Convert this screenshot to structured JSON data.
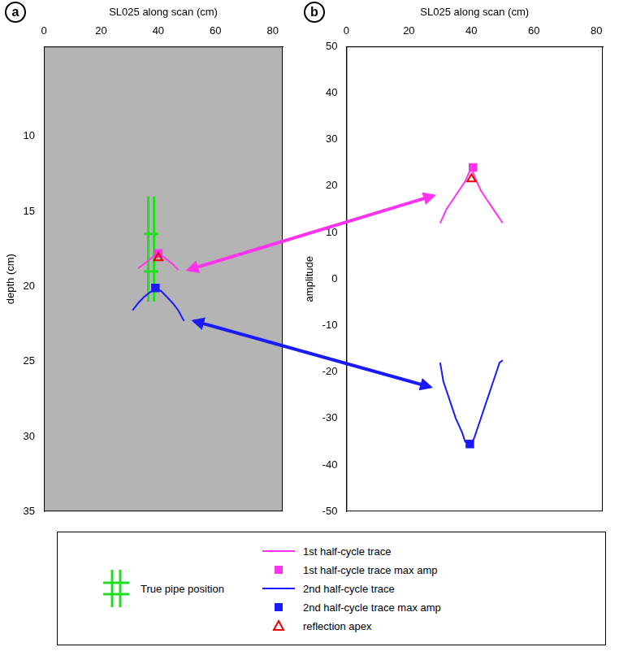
{
  "chart_data": [
    {
      "type": "line",
      "panel_label": "a",
      "x_label": "SL025 along scan (cm)",
      "y_label": "depth (cm)",
      "xlim": [
        0,
        83.5
      ],
      "xticks": [
        0,
        20,
        40,
        60,
        80
      ],
      "ylim": [
        35,
        4
      ],
      "yticks": [
        10,
        15,
        20,
        25,
        30,
        35
      ],
      "grid": false,
      "legend": "bottom",
      "series": [
        {
          "name": "True pipe position",
          "color": "#22dd22",
          "marker": "none",
          "line_style": "solid",
          "x": [
            36.5,
            36.5,
            null,
            38.5,
            38.5,
            null,
            35,
            40,
            null,
            35,
            40
          ],
          "values": [
            14,
            21,
            null,
            14,
            21,
            null,
            16.5,
            16.5,
            null,
            19,
            19
          ]
        },
        {
          "name": "1st half-cycle trace",
          "color": "#ff33ee",
          "marker": "none",
          "line_style": "solid",
          "x": [
            33,
            35,
            37,
            39,
            41,
            43,
            45,
            47
          ],
          "values": [
            18.8,
            18.5,
            18.2,
            17.9,
            17.9,
            18.2,
            18.5,
            18.9
          ]
        },
        {
          "name": "1st half-cycle trace max amp",
          "color": "#ff33ee",
          "marker": "square",
          "line_style": "none",
          "x": [
            40
          ],
          "values": [
            17.8
          ]
        },
        {
          "name": "2nd half-cycle trace",
          "color": "#1a1aff",
          "marker": "none",
          "line_style": "solid",
          "x": [
            31,
            33,
            35,
            37,
            39,
            41,
            43,
            45,
            47,
            49
          ],
          "values": [
            21.6,
            21.1,
            20.7,
            20.4,
            20.2,
            20.3,
            20.7,
            21.1,
            21.6,
            22.3
          ]
        },
        {
          "name": "2nd half-cycle trace max amp",
          "color": "#1a1aff",
          "marker": "square",
          "line_style": "none",
          "x": [
            39
          ],
          "values": [
            20.1
          ]
        },
        {
          "name": "reflection apex",
          "color": "#ee0000",
          "marker": "triangle",
          "line_style": "none",
          "x": [
            40
          ],
          "values": [
            18.1
          ]
        }
      ]
    },
    {
      "type": "line",
      "panel_label": "b",
      "x_label": "SL025 along scan (cm)",
      "y_label": "amplitude",
      "xlim": [
        0,
        82
      ],
      "xticks": [
        0,
        20,
        40,
        60,
        80
      ],
      "ylim": [
        -50,
        50
      ],
      "yticks": [
        -50,
        -40,
        -30,
        -20,
        -10,
        0,
        10,
        20,
        30,
        40,
        50
      ],
      "grid": false,
      "series": [
        {
          "name": "1st half-cycle trace",
          "color": "#ff33ee",
          "marker": "none",
          "line_style": "solid",
          "x": [
            30,
            32,
            34,
            36,
            38,
            39,
            40,
            41,
            43,
            45,
            47,
            50
          ],
          "values": [
            12,
            15,
            17,
            19,
            21,
            22.5,
            24,
            22,
            19,
            17,
            15,
            12
          ]
        },
        {
          "name": "1st half-cycle trace max amp",
          "color": "#ff33ee",
          "marker": "square",
          "line_style": "none",
          "x": [
            40.5
          ],
          "values": [
            24
          ]
        },
        {
          "name": "2nd half-cycle trace",
          "color": "#1a1aff",
          "marker": "none",
          "line_style": "solid",
          "x": [
            30,
            31,
            33,
            35,
            37,
            38,
            39,
            40,
            41,
            43,
            45,
            47,
            49,
            50
          ],
          "values": [
            -18,
            -22,
            -26,
            -30,
            -33,
            -35,
            -35.5,
            -35.5,
            -34,
            -30,
            -26,
            -22,
            -18,
            -17.5
          ]
        },
        {
          "name": "2nd half-cycle trace max amp",
          "color": "#1a1aff",
          "marker": "square",
          "line_style": "none",
          "x": [
            39.5
          ],
          "values": [
            -35.5
          ]
        },
        {
          "name": "reflection apex",
          "color": "#ee0000",
          "marker": "triangle",
          "line_style": "none",
          "x": [
            40
          ],
          "values": [
            21.5
          ]
        }
      ]
    }
  ]
}
